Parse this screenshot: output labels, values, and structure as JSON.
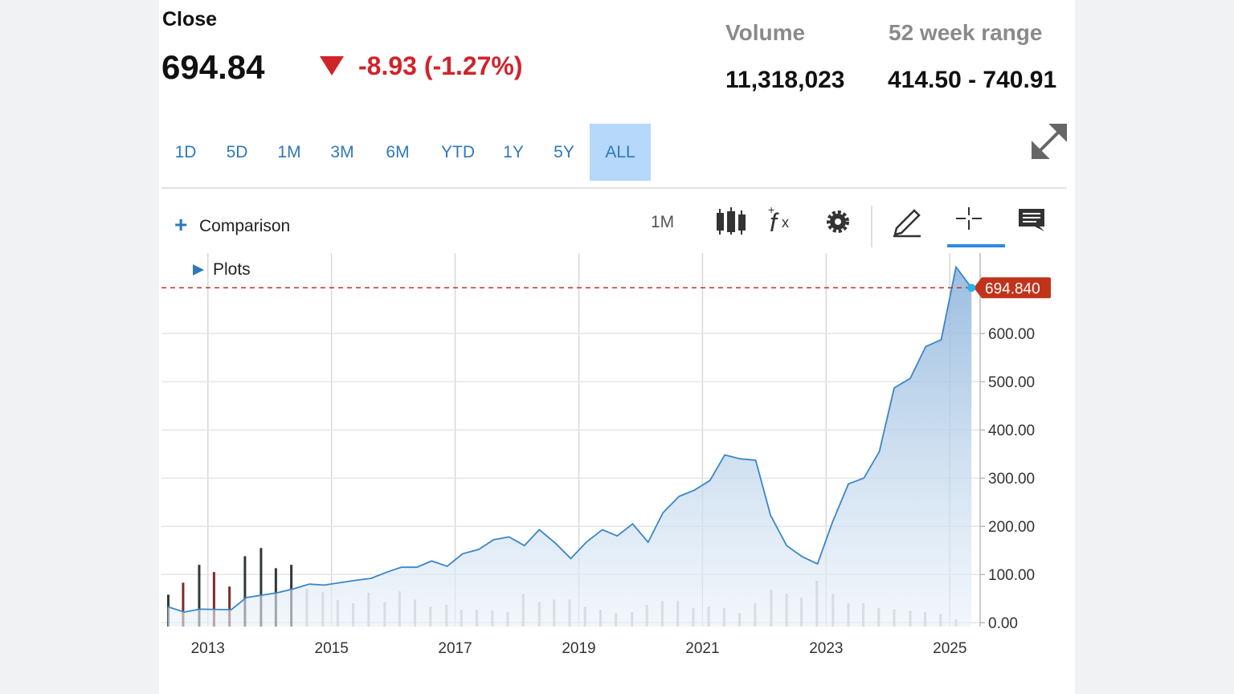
{
  "header": {
    "close_label": "Close",
    "close_value": "694.84",
    "change": "-8.93 (-1.27%)",
    "volume_label": "Volume",
    "volume_value": "11,318,023",
    "range_label": "52 week range",
    "range_value": "414.50 - 740.91"
  },
  "range_buttons": [
    "1D",
    "5D",
    "1M",
    "3M",
    "6M",
    "YTD",
    "1Y",
    "5Y",
    "ALL"
  ],
  "active_range_index": 8,
  "toolbar": {
    "comparison": "Comparison",
    "interval": "1M",
    "plots": "Plots"
  },
  "chart_data": {
    "type": "line",
    "xlim": [
      2012.25,
      2025.49
    ],
    "xticks": [
      2013,
      2015,
      2017,
      2019,
      2021,
      2023,
      2025
    ],
    "ylim": [
      -8,
      767
    ],
    "yticks": [
      {
        "value": 0,
        "label": "0.00"
      },
      {
        "value": 100,
        "label": "100.00"
      },
      {
        "value": 200,
        "label": "200.00"
      },
      {
        "value": 300,
        "label": "300.00"
      },
      {
        "value": 400,
        "label": "400.00"
      },
      {
        "value": 500,
        "label": "500.00"
      },
      {
        "value": 600,
        "label": "600.00"
      }
    ],
    "grid": true,
    "x": [
      2012.35,
      2012.62,
      2012.87,
      2013.38,
      2013.62,
      2014.12,
      2014.38,
      2014.64,
      2014.88,
      2015.4,
      2015.64,
      2015.9,
      2016.13,
      2016.38,
      2016.62,
      2016.87,
      2017.12,
      2017.38,
      2017.62,
      2017.87,
      2018.12,
      2018.36,
      2018.62,
      2018.87,
      2019.12,
      2019.38,
      2019.62,
      2019.87,
      2020.12,
      2020.36,
      2020.62,
      2020.87,
      2021.12,
      2021.36,
      2021.61,
      2021.86,
      2022.1,
      2022.36,
      2022.61,
      2022.86,
      2023.1,
      2023.36,
      2023.61,
      2023.86,
      2024.1,
      2024.36,
      2024.61,
      2024.86,
      2025.1,
      2025.35
    ],
    "series": [
      {
        "color": "#3a86c8",
        "values": [
          33,
          22,
          28,
          27,
          52,
          62,
          70,
          80,
          78,
          88,
          92,
          105,
          115,
          115,
          128,
          117,
          143,
          152,
          172,
          178,
          160,
          193,
          165,
          133,
          167,
          193,
          180,
          205,
          167,
          228,
          262,
          275,
          295,
          348,
          340,
          337,
          223,
          160,
          137,
          122,
          208,
          288,
          300,
          355,
          487,
          507,
          573,
          587,
          738,
          694.84
        ]
      }
    ],
    "volume": {
      "x": [
        2012.36,
        2012.6,
        2012.86,
        2013.1,
        2013.35,
        2013.6,
        2013.86,
        2014.1,
        2014.35,
        2014.6,
        2014.86,
        2015.1,
        2015.35,
        2015.6,
        2015.86,
        2016.1,
        2016.35,
        2016.6,
        2016.86,
        2017.1,
        2017.35,
        2017.6,
        2017.85,
        2018.1,
        2018.36,
        2018.6,
        2018.85,
        2019.1,
        2019.35,
        2019.6,
        2019.86,
        2020.1,
        2020.35,
        2020.6,
        2020.85,
        2021.1,
        2021.35,
        2021.6,
        2021.85,
        2022.11,
        2022.36,
        2022.6,
        2022.85,
        2023.11,
        2023.36,
        2023.6,
        2023.85,
        2024.1,
        2024.36,
        2024.6,
        2024.85,
        2025.1
      ],
      "values": [
        58,
        83,
        120,
        105,
        75,
        138,
        155,
        113,
        120,
        70,
        63,
        47,
        40,
        62,
        43,
        65,
        48,
        33,
        37,
        27,
        27,
        25,
        22,
        60,
        43,
        48,
        48,
        33,
        27,
        20,
        22,
        37,
        45,
        45,
        30,
        33,
        30,
        20,
        40,
        68,
        60,
        52,
        87,
        60,
        40,
        40,
        30,
        28,
        25,
        22,
        18,
        7
      ],
      "colors": [
        "#2f3a34",
        "#7a2e2a",
        "#2f3a34",
        "#7a2e2a",
        "#7a2e2a",
        "#2f3a34",
        "#2f3a34",
        "#2f3a34",
        "#2f3a34",
        "#c5bfc3",
        "#c5bfc3",
        "#c5bfc3",
        "#c5bfc3",
        "#c5bfc3",
        "#c5bfc3",
        "#c5bfc3",
        "#c5bfc3",
        "#c5bfc3",
        "#c5bfc3",
        "#c5bfc3",
        "#c5bfc3",
        "#c5bfc3",
        "#c5bfc3",
        "#c5bfc3",
        "#c5bfc3",
        "#c5bfc3",
        "#c5bfc3",
        "#c5bfc3",
        "#c5bfc3",
        "#c5bfc3",
        "#c5bfc3",
        "#c5bfc3",
        "#c5bfc3",
        "#c5bfc3",
        "#c5bfc3",
        "#c5bfc3",
        "#c5bfc3",
        "#c5bfc3",
        "#c5bfc3",
        "#c5bfc3",
        "#c5bfc3",
        "#c5bfc3",
        "#c5bfc3",
        "#c5bfc3",
        "#c5bfc3",
        "#c5bfc3",
        "#c5bfc3",
        "#c5bfc3",
        "#c5bfc3",
        "#c5bfc3",
        "#c5bfc3",
        "#c5bfc3"
      ]
    },
    "last_price": {
      "value": 694.84,
      "label": "694.840",
      "color": "#c0341b"
    }
  }
}
